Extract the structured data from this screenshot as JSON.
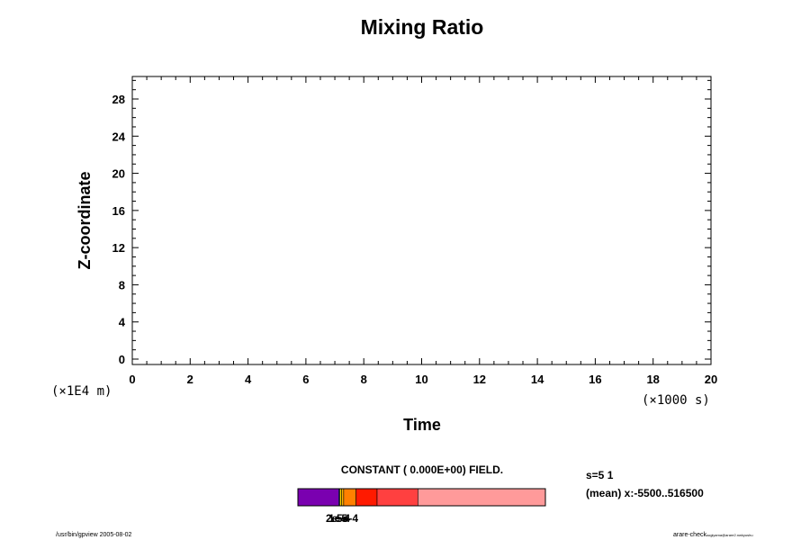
{
  "chart_data": {
    "type": "heatmap",
    "title": "Mixing Ratio",
    "xlabel": "Time",
    "ylabel": "Z-coordinate",
    "x_scale_label": "(×1000 s)",
    "y_scale_label": "(×1E4 m)",
    "xlim": [
      0,
      20
    ],
    "ylim": [
      0,
      30
    ],
    "x_ticks": [
      "0",
      "2",
      "4",
      "6",
      "8",
      "10",
      "12",
      "14",
      "16",
      "18",
      "20"
    ],
    "y_ticks": [
      "0",
      "4",
      "8",
      "12",
      "16",
      "20",
      "24",
      "28"
    ],
    "field_note": "CONSTANT ( 0.000E+00) FIELD.",
    "stats": [
      "s=5 1",
      "(mean) x:-5500..516500"
    ],
    "colorbar": {
      "labels": [
        "2e-5",
        "1e-4",
        "5e-4"
      ],
      "segments": [
        {
          "color": "#7a00b0",
          "weight": 0.165
        },
        {
          "color": "#3a3aff",
          "weight": 0.004
        },
        {
          "color": "#ffd400",
          "weight": 0.008
        },
        {
          "color": "#ffb000",
          "weight": 0.008
        },
        {
          "color": "#ff8000",
          "weight": 0.05
        },
        {
          "color": "#ff1a00",
          "weight": 0.085
        },
        {
          "color": "#ff4040",
          "weight": 0.165
        },
        {
          "color": "#ff9a9a",
          "weight": 0.515
        }
      ]
    }
  },
  "footer": {
    "left": "/usr/bin/gpview 2005-08-02",
    "right": "arare-check",
    "right_small": "sugiyama@arare2.nwkyushu"
  }
}
